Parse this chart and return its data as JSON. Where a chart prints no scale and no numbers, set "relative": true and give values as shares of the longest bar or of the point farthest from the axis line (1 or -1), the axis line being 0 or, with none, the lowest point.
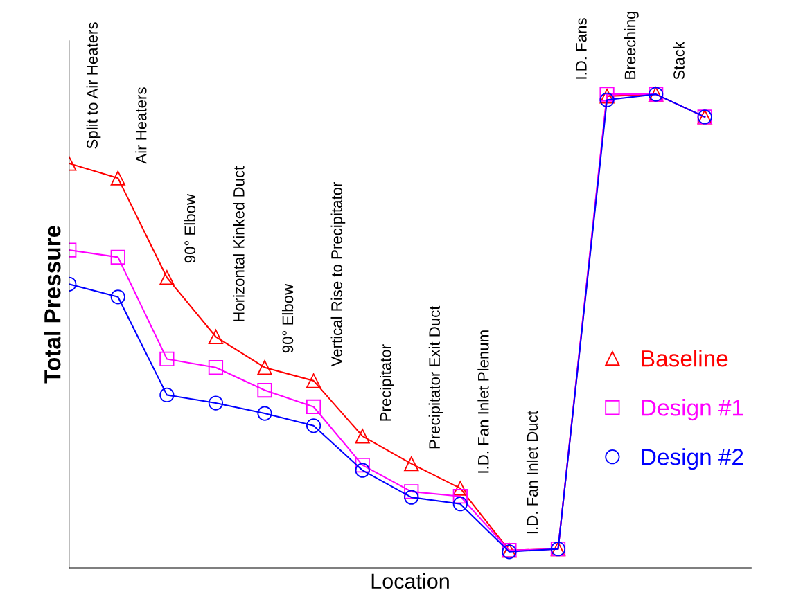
{
  "chart_data": {
    "type": "line",
    "relative": true,
    "xlabel": "Location",
    "ylabel": "Total Pressure",
    "categories": [
      null,
      null,
      null,
      null,
      null,
      null,
      null,
      null,
      null,
      null,
      null,
      null,
      null,
      null
    ],
    "series": [
      {
        "name": "Baseline",
        "color": "#ff0000",
        "marker": "triangle",
        "values": [
          0.854,
          0.823,
          0.613,
          0.488,
          0.423,
          0.395,
          0.278,
          0.22,
          0.168,
          0.037,
          0.04,
          0.996,
          1.0,
          0.952
        ]
      },
      {
        "name": "Design #1",
        "color": "#ff00ff",
        "marker": "square",
        "values": [
          0.671,
          0.656,
          0.441,
          0.423,
          0.375,
          0.34,
          0.217,
          0.161,
          0.151,
          0.037,
          0.04,
          1.0,
          1.0,
          0.952
        ]
      },
      {
        "name": "Design #2",
        "color": "#0000ff",
        "marker": "circle",
        "values": [
          0.599,
          0.572,
          0.365,
          0.348,
          0.326,
          0.3,
          0.206,
          0.149,
          0.135,
          0.034,
          0.04,
          0.988,
          1.0,
          0.952
        ]
      }
    ],
    "annotations": [
      "Split to Air Heaters",
      "Air Heaters",
      "90° Elbow",
      "Horizontal Kinked Duct",
      "90° Elbow",
      "Vertical Rise to Precipitator",
      "Precipitator",
      "Precipitator Exit Duct",
      "I.D. Fan Inlet Plenum",
      "I.D. Fan Inlet Duct",
      "I.D. Fans",
      "Breeching",
      "Stack"
    ],
    "legend": "right",
    "grid": false,
    "line_style": "solid"
  }
}
